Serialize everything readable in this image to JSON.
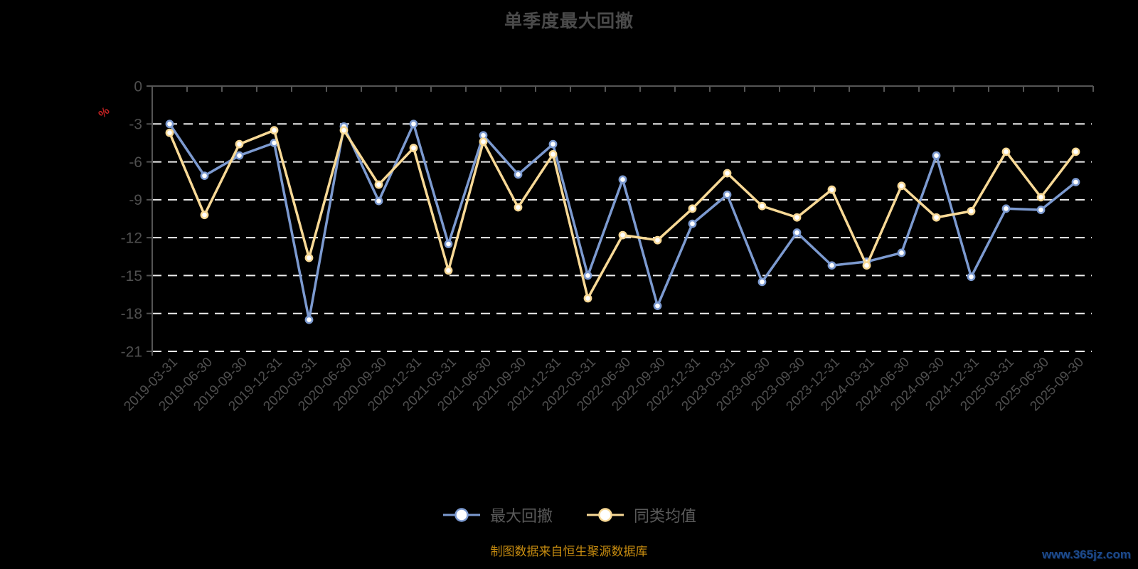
{
  "page": {
    "title": "单季度最大回撤",
    "source_note": "制图数据来自恒生聚源数据库",
    "watermark": "www.365jz.com"
  },
  "colors": {
    "background": "#000000",
    "title": "#4a4a4a",
    "axis_line": "#555555",
    "axis_label": "#4f4f4f",
    "gridline": "#ededed",
    "legend_text": "#5a5a5a",
    "unit_label": "#c32222",
    "source_note": "#c68b10",
    "watermark": "#1d4a8c",
    "series_max_drawdown": "#7c9ad0",
    "series_category_avg": "#f8d996",
    "marker_fill": "#ffffff"
  },
  "chart_data": {
    "type": "line",
    "title": "单季度最大回撤",
    "xlabel": "",
    "ylabel": "%",
    "ylim": [
      -21,
      0
    ],
    "yticks": [
      0,
      -3,
      -6,
      -9,
      -12,
      -15,
      -18,
      -21
    ],
    "grid": "horizontal-dashed",
    "legend_position": "bottom-center",
    "x_label_rotation": -45,
    "categories": [
      "2019-03-31",
      "2019-06-30",
      "2019-09-30",
      "2019-12-31",
      "2020-03-31",
      "2020-06-30",
      "2020-09-30",
      "2020-12-31",
      "2021-03-31",
      "2021-06-30",
      "2021-09-30",
      "2021-12-31",
      "2022-03-31",
      "2022-06-30",
      "2022-09-30",
      "2022-12-31",
      "2023-03-31",
      "2023-06-30",
      "2023-09-30",
      "2023-12-31",
      "2024-03-31",
      "2024-06-30",
      "2024-09-30",
      "2024-12-31",
      "2025-03-31",
      "2025-06-30",
      "2025-09-30"
    ],
    "series": [
      {
        "name": "最大回撤",
        "color": "#7c9ad0",
        "values": [
          -3.0,
          -7.1,
          -5.5,
          -4.5,
          -18.5,
          -3.2,
          -9.1,
          -3.0,
          -12.5,
          -3.9,
          -7.0,
          -4.6,
          -15.0,
          -7.4,
          -17.4,
          -10.9,
          -8.6,
          -15.5,
          -11.6,
          -14.2,
          -13.9,
          -13.2,
          -5.5,
          -15.1,
          -9.7,
          -9.8,
          -7.6
        ]
      },
      {
        "name": "同类均值",
        "color": "#f8d996",
        "values": [
          -3.7,
          -10.2,
          -4.6,
          -3.5,
          -13.6,
          -3.5,
          -7.8,
          -4.9,
          -14.6,
          -4.4,
          -9.6,
          -5.4,
          -16.8,
          -11.8,
          -12.2,
          -9.7,
          -6.9,
          -9.5,
          -10.4,
          -8.2,
          -14.2,
          -7.9,
          -10.4,
          -9.9,
          -5.2,
          -8.8,
          -5.2
        ]
      }
    ]
  }
}
